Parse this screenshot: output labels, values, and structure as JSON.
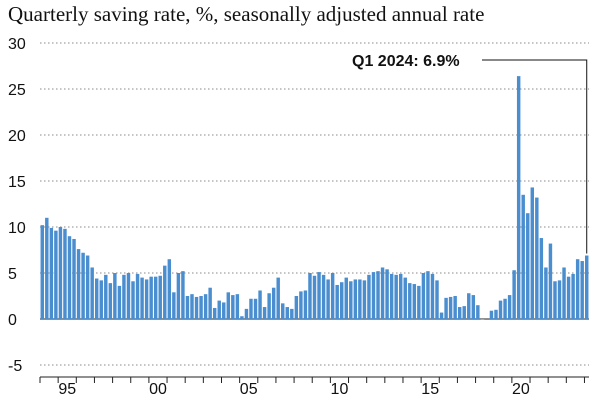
{
  "chart_data": {
    "type": "bar",
    "title": "Quarterly saving rate, %, seasonally adjusted annual rate",
    "xlabel": "",
    "ylabel": "",
    "x_start": "1994-Q1",
    "x_end": "2024-Q1",
    "ylim": [
      -5,
      30
    ],
    "yticks": [
      30,
      25,
      20,
      15,
      10,
      5,
      0,
      -5
    ],
    "xtick_labels": [
      {
        "label": "95",
        "year": 1995
      },
      {
        "label": "00",
        "year": 2000
      },
      {
        "label": "05",
        "year": 2005
      },
      {
        "label": "10",
        "year": 2010
      },
      {
        "label": "15",
        "year": 2015
      },
      {
        "label": "20",
        "year": 2020
      }
    ],
    "grid": "horizontal dotted",
    "bar_color": "#4a8ed0",
    "annotation": {
      "label": "Q1 2024: 6.9%",
      "value": 6.9,
      "period": "2024-Q1"
    },
    "values": [
      10.2,
      11.0,
      9.9,
      9.6,
      10.0,
      9.8,
      9.0,
      8.7,
      7.6,
      7.2,
      6.9,
      5.6,
      4.4,
      4.2,
      4.8,
      3.9,
      5.0,
      3.6,
      4.8,
      5.0,
      4.1,
      4.9,
      4.5,
      4.3,
      4.6,
      4.6,
      4.7,
      5.8,
      6.5,
      2.9,
      5.0,
      5.2,
      2.5,
      2.7,
      2.4,
      2.5,
      2.7,
      3.4,
      1.2,
      2.0,
      1.8,
      2.9,
      2.6,
      2.7,
      0.3,
      1.1,
      2.2,
      2.2,
      3.1,
      1.3,
      2.8,
      3.4,
      4.5,
      1.7,
      1.3,
      1.1,
      2.5,
      3.0,
      3.1,
      5.0,
      4.7,
      5.1,
      4.8,
      4.3,
      5.0,
      3.7,
      4.0,
      4.5,
      4.1,
      4.3,
      4.3,
      4.2,
      4.8,
      5.1,
      5.2,
      5.6,
      5.4,
      4.9,
      4.8,
      4.9,
      4.5,
      3.9,
      3.8,
      3.6,
      5.0,
      5.2,
      4.9,
      4.2,
      0.7,
      2.3,
      2.4,
      2.5,
      1.3,
      1.4,
      2.8,
      2.6,
      1.5,
      0.0,
      -0.1,
      0.9,
      1.0,
      2.0,
      2.2,
      2.6,
      5.3,
      26.4,
      13.5,
      11.5,
      14.3,
      13.2,
      8.8,
      5.6,
      8.2,
      4.1,
      4.2,
      5.6,
      4.6,
      4.9,
      6.5,
      6.3,
      6.9
    ]
  }
}
